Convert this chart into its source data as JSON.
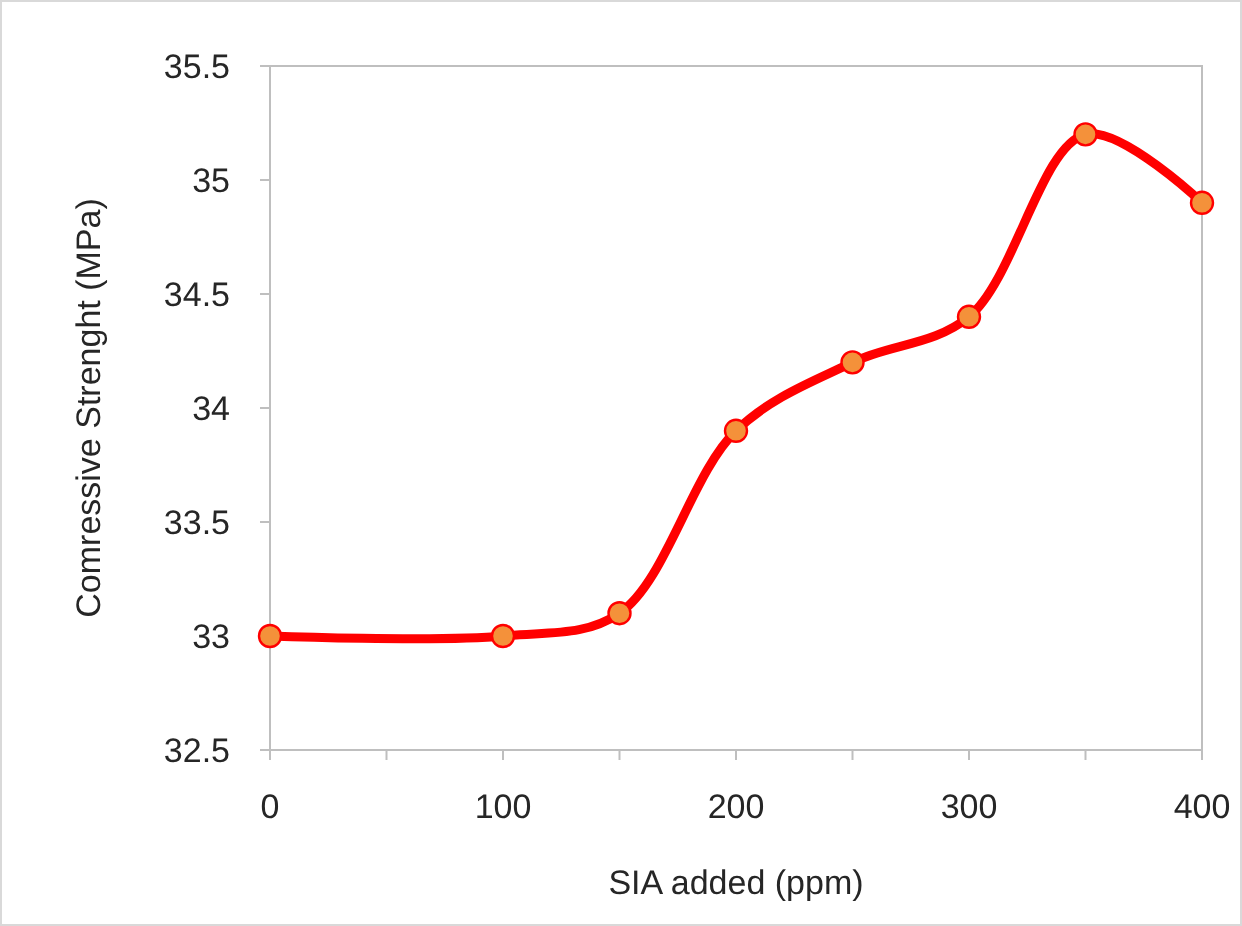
{
  "chart_data": {
    "type": "line",
    "xlabel": "SIA added (ppm)",
    "ylabel": "Comressive Strenght (MPa)",
    "x": [
      0,
      100,
      150,
      200,
      250,
      300,
      350,
      400
    ],
    "series": [
      {
        "color": "#ff0000",
        "values": [
          33,
          33,
          33.1,
          33.9,
          34.2,
          34.4,
          35.2,
          34.9
        ]
      }
    ],
    "xlim": [
      0,
      400
    ],
    "xticks": [
      0,
      {
        "value": 50,
        "label": null
      },
      100,
      {
        "value": 150,
        "label": null
      },
      200,
      {
        "value": 250,
        "label": null
      },
      300,
      {
        "value": 350,
        "label": null
      },
      400
    ],
    "ylim": [
      32.5,
      35.5
    ],
    "yticks": [
      32.5,
      33,
      33.5,
      34,
      34.5,
      35,
      35.5
    ],
    "marker": "circle",
    "line_style": "solid"
  }
}
